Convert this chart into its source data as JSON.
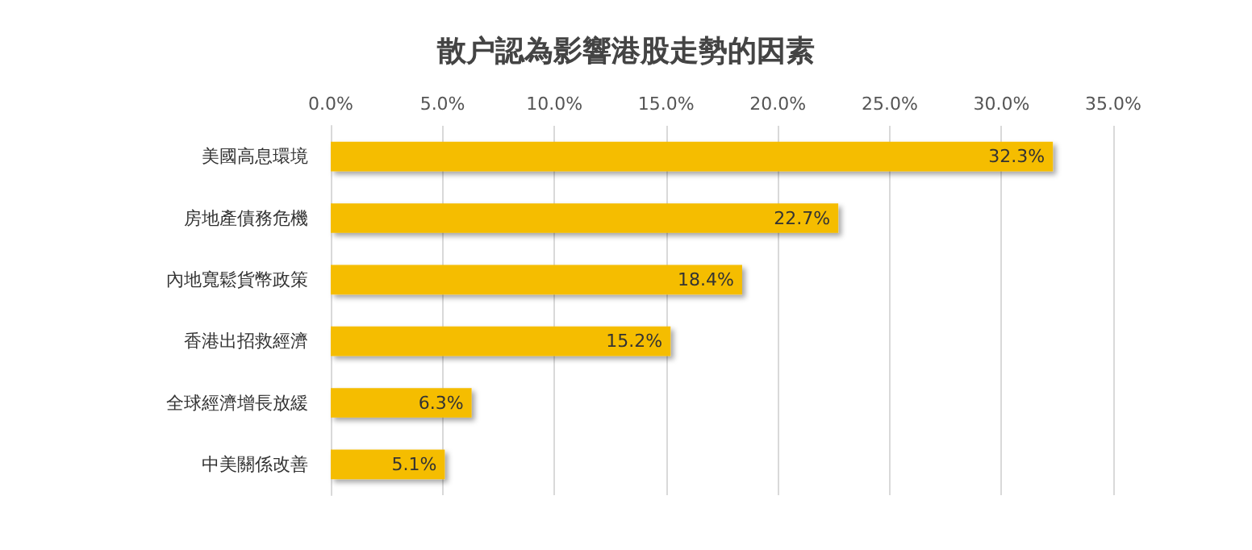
{
  "chart_data": {
    "type": "bar",
    "orientation": "horizontal",
    "title": "散户認為影響港股走勢的因素",
    "categories": [
      "美國高息環境",
      "房地產債務危機",
      "內地寬鬆貨幣政策",
      "香港出招救經濟",
      "全球經濟增長放緩",
      "中美關係改善"
    ],
    "values": [
      32.3,
      22.7,
      18.4,
      15.2,
      6.3,
      5.1
    ],
    "value_labels": [
      "32.3%",
      "22.7%",
      "18.4%",
      "15.2%",
      "6.3%",
      "5.1%"
    ],
    "color": "#f5bd00",
    "xlim": [
      0,
      35
    ],
    "xticks": [
      {
        "value": 0,
        "label": "0.0%"
      },
      {
        "value": 5,
        "label": "5.0%"
      },
      {
        "value": 10,
        "label": "10.0%"
      },
      {
        "value": 15,
        "label": "15.0%"
      },
      {
        "value": 20,
        "label": "20.0%"
      },
      {
        "value": 25,
        "label": "25.0%"
      },
      {
        "value": 30,
        "label": "30.0%"
      },
      {
        "value": 35,
        "label": "35.0%"
      }
    ],
    "grid": "x"
  }
}
